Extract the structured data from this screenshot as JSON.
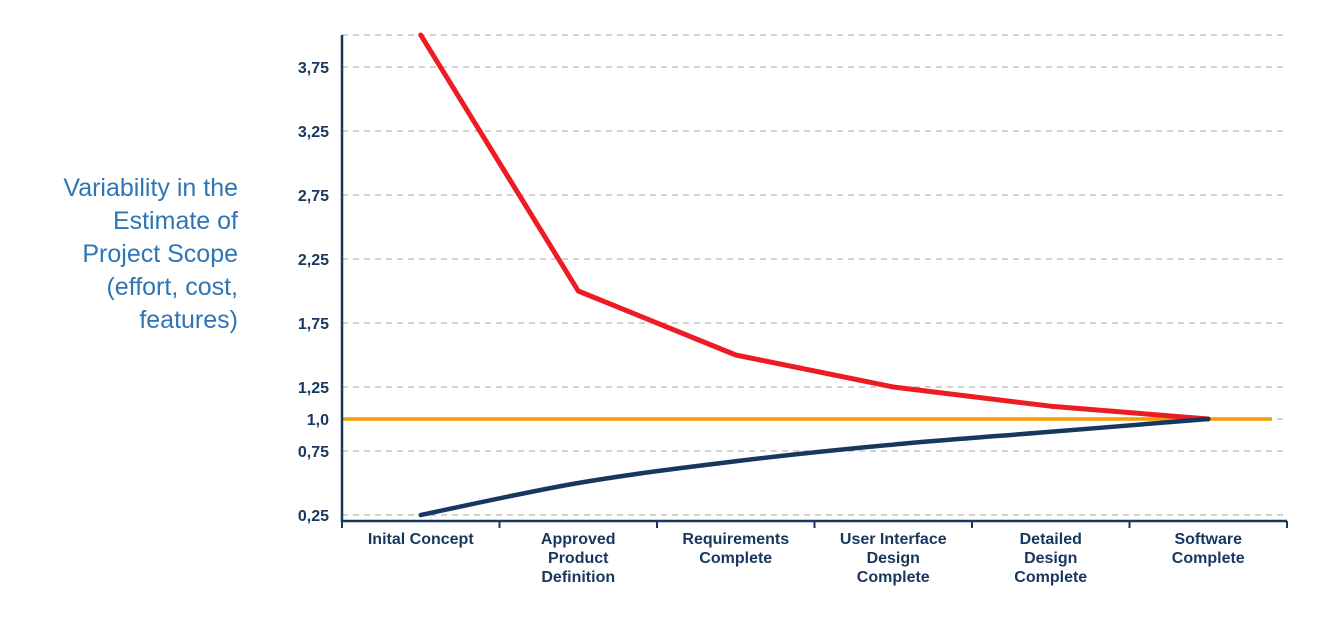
{
  "chart_data": {
    "type": "line",
    "title": "",
    "xlabel": "",
    "ylabel": "Variability in the Estimate of Project Scope (effort, cost, features)",
    "side_label_lines": [
      "Variability in the",
      "Estimate of",
      "Project Scope",
      "(effort, cost,",
      "features)"
    ],
    "side_label_color": "#2e75b6",
    "categories": [
      "Inital Concept",
      "Approved Product Definition",
      "Requirements Complete",
      "User Interface Design Complete",
      "Detailed Design Complete",
      "Software Complete"
    ],
    "category_label_lines": [
      [
        "Inital Concept"
      ],
      [
        "Approved",
        "Product",
        "Definition"
      ],
      [
        "Requirements",
        "Complete"
      ],
      [
        "User Interface",
        "Design",
        "Complete"
      ],
      [
        "Detailed",
        "Design",
        "Complete"
      ],
      [
        "Software",
        "Complete"
      ]
    ],
    "ylim": [
      0.25,
      4.0
    ],
    "y_ticks": [
      {
        "value": 4.0,
        "label": ""
      },
      {
        "value": 3.75,
        "label": "3,75"
      },
      {
        "value": 3.25,
        "label": "3,25"
      },
      {
        "value": 2.75,
        "label": "2,75"
      },
      {
        "value": 2.25,
        "label": "2,25"
      },
      {
        "value": 1.75,
        "label": "1,75"
      },
      {
        "value": 1.25,
        "label": "1,25"
      },
      {
        "value": 1.0,
        "label": "1,0"
      },
      {
        "value": 0.75,
        "label": "0,75"
      },
      {
        "value": 0.25,
        "label": "0,25"
      }
    ],
    "series": [
      {
        "name": "upper-estimate",
        "color": "#ed1c24",
        "width": 5,
        "smooth": false,
        "values": [
          4.0,
          2.0,
          1.5,
          1.25,
          1.1,
          1.0
        ]
      },
      {
        "name": "lower-estimate",
        "color": "#17375e",
        "width": 4.5,
        "smooth": true,
        "values": [
          0.25,
          0.5,
          0.67,
          0.8,
          0.9,
          1.0
        ]
      }
    ],
    "baseline": {
      "value": 1.0,
      "color": "#f59c00",
      "width": 3.5
    },
    "grid": {
      "on": true,
      "color": "#a6a6a6",
      "dash": "6 5"
    },
    "axis": {
      "color": "#17375e",
      "width": 2.5,
      "tick_label_color": "#17375e",
      "category_label_color": "#17375e"
    },
    "legend": null
  }
}
